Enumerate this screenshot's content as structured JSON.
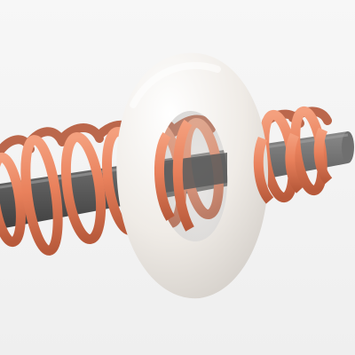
{
  "scene": {
    "background": "#f4f4f4",
    "objects": [
      {
        "name": "rod",
        "shape": "cylinder",
        "color": "#6b6b6b"
      },
      {
        "name": "coil",
        "shape": "helix",
        "color": "#e9815c"
      },
      {
        "name": "ring",
        "shape": "torus",
        "color": "#efebe6"
      }
    ]
  }
}
